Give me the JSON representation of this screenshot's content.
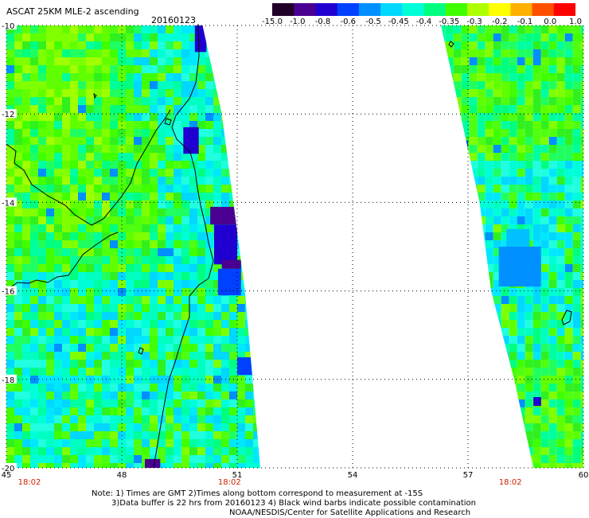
{
  "header": {
    "title": "ASCAT 25KM MLE-2 ascending",
    "date": "20160123"
  },
  "colorbar": {
    "colors": [
      "#200028",
      "#4a0090",
      "#2000d0",
      "#0040ff",
      "#0090ff",
      "#00d8ff",
      "#00ffd8",
      "#00ff80",
      "#40ff00",
      "#b0ff00",
      "#ffff00",
      "#ffb000",
      "#ff5000",
      "#ff0000"
    ],
    "ticks": [
      "-15.0",
      "-1.0",
      "-0.8",
      "-0.6",
      "-0.5",
      "-0.45",
      "-0.4",
      "-0.35",
      "-0.3",
      "-0.2",
      "-0.1",
      "0.0",
      "1.0"
    ]
  },
  "chart_data": {
    "type": "heatmap",
    "title": "ASCAT 25KM MLE-2 ascending",
    "subtitle": "20160123",
    "xlim": [
      45,
      60
    ],
    "ylim": [
      -20,
      -10
    ],
    "x_ticks": [
      "45",
      "48",
      "51",
      "54",
      "57",
      "60"
    ],
    "y_ticks": [
      "-10",
      "-12",
      "-14",
      "-16",
      "-18",
      "-20"
    ],
    "time_labels": [
      {
        "x": 45.6,
        "text": "18:02"
      },
      {
        "x": 50.8,
        "text": "18:02"
      },
      {
        "x": 58.1,
        "text": "18:02"
      }
    ],
    "legend_min": -15.0,
    "legend_max": 1.0,
    "swaths": [
      {
        "name": "west",
        "lon_west": [
          45.0,
          45.0,
          45.0,
          45.0,
          45.0,
          45.0
        ],
        "lon_east": [
          50.1,
          50.6,
          50.9,
          51.2,
          51.4,
          51.6
        ],
        "lat": [
          -10,
          -12,
          -14,
          -16,
          -18,
          -20
        ]
      },
      {
        "name": "east",
        "lon_west": [
          56.3,
          56.8,
          57.3,
          57.6,
          58.2,
          58.7
        ],
        "lon_east": [
          60,
          60,
          60,
          60,
          60,
          60
        ],
        "lat": [
          -10,
          -12,
          -14,
          -16,
          -18,
          -20
        ]
      }
    ]
  },
  "notes": {
    "line1": "Note: 1) Times are GMT 2)Times along bottom correspond to measurement at -15S",
    "line2": "3)Data buffer is 22 hrs from 20160123 4) Black wind barbs indicate possible contamination",
    "line3": "NOAA/NESDIS/Center for Satellite Applications and Research"
  }
}
